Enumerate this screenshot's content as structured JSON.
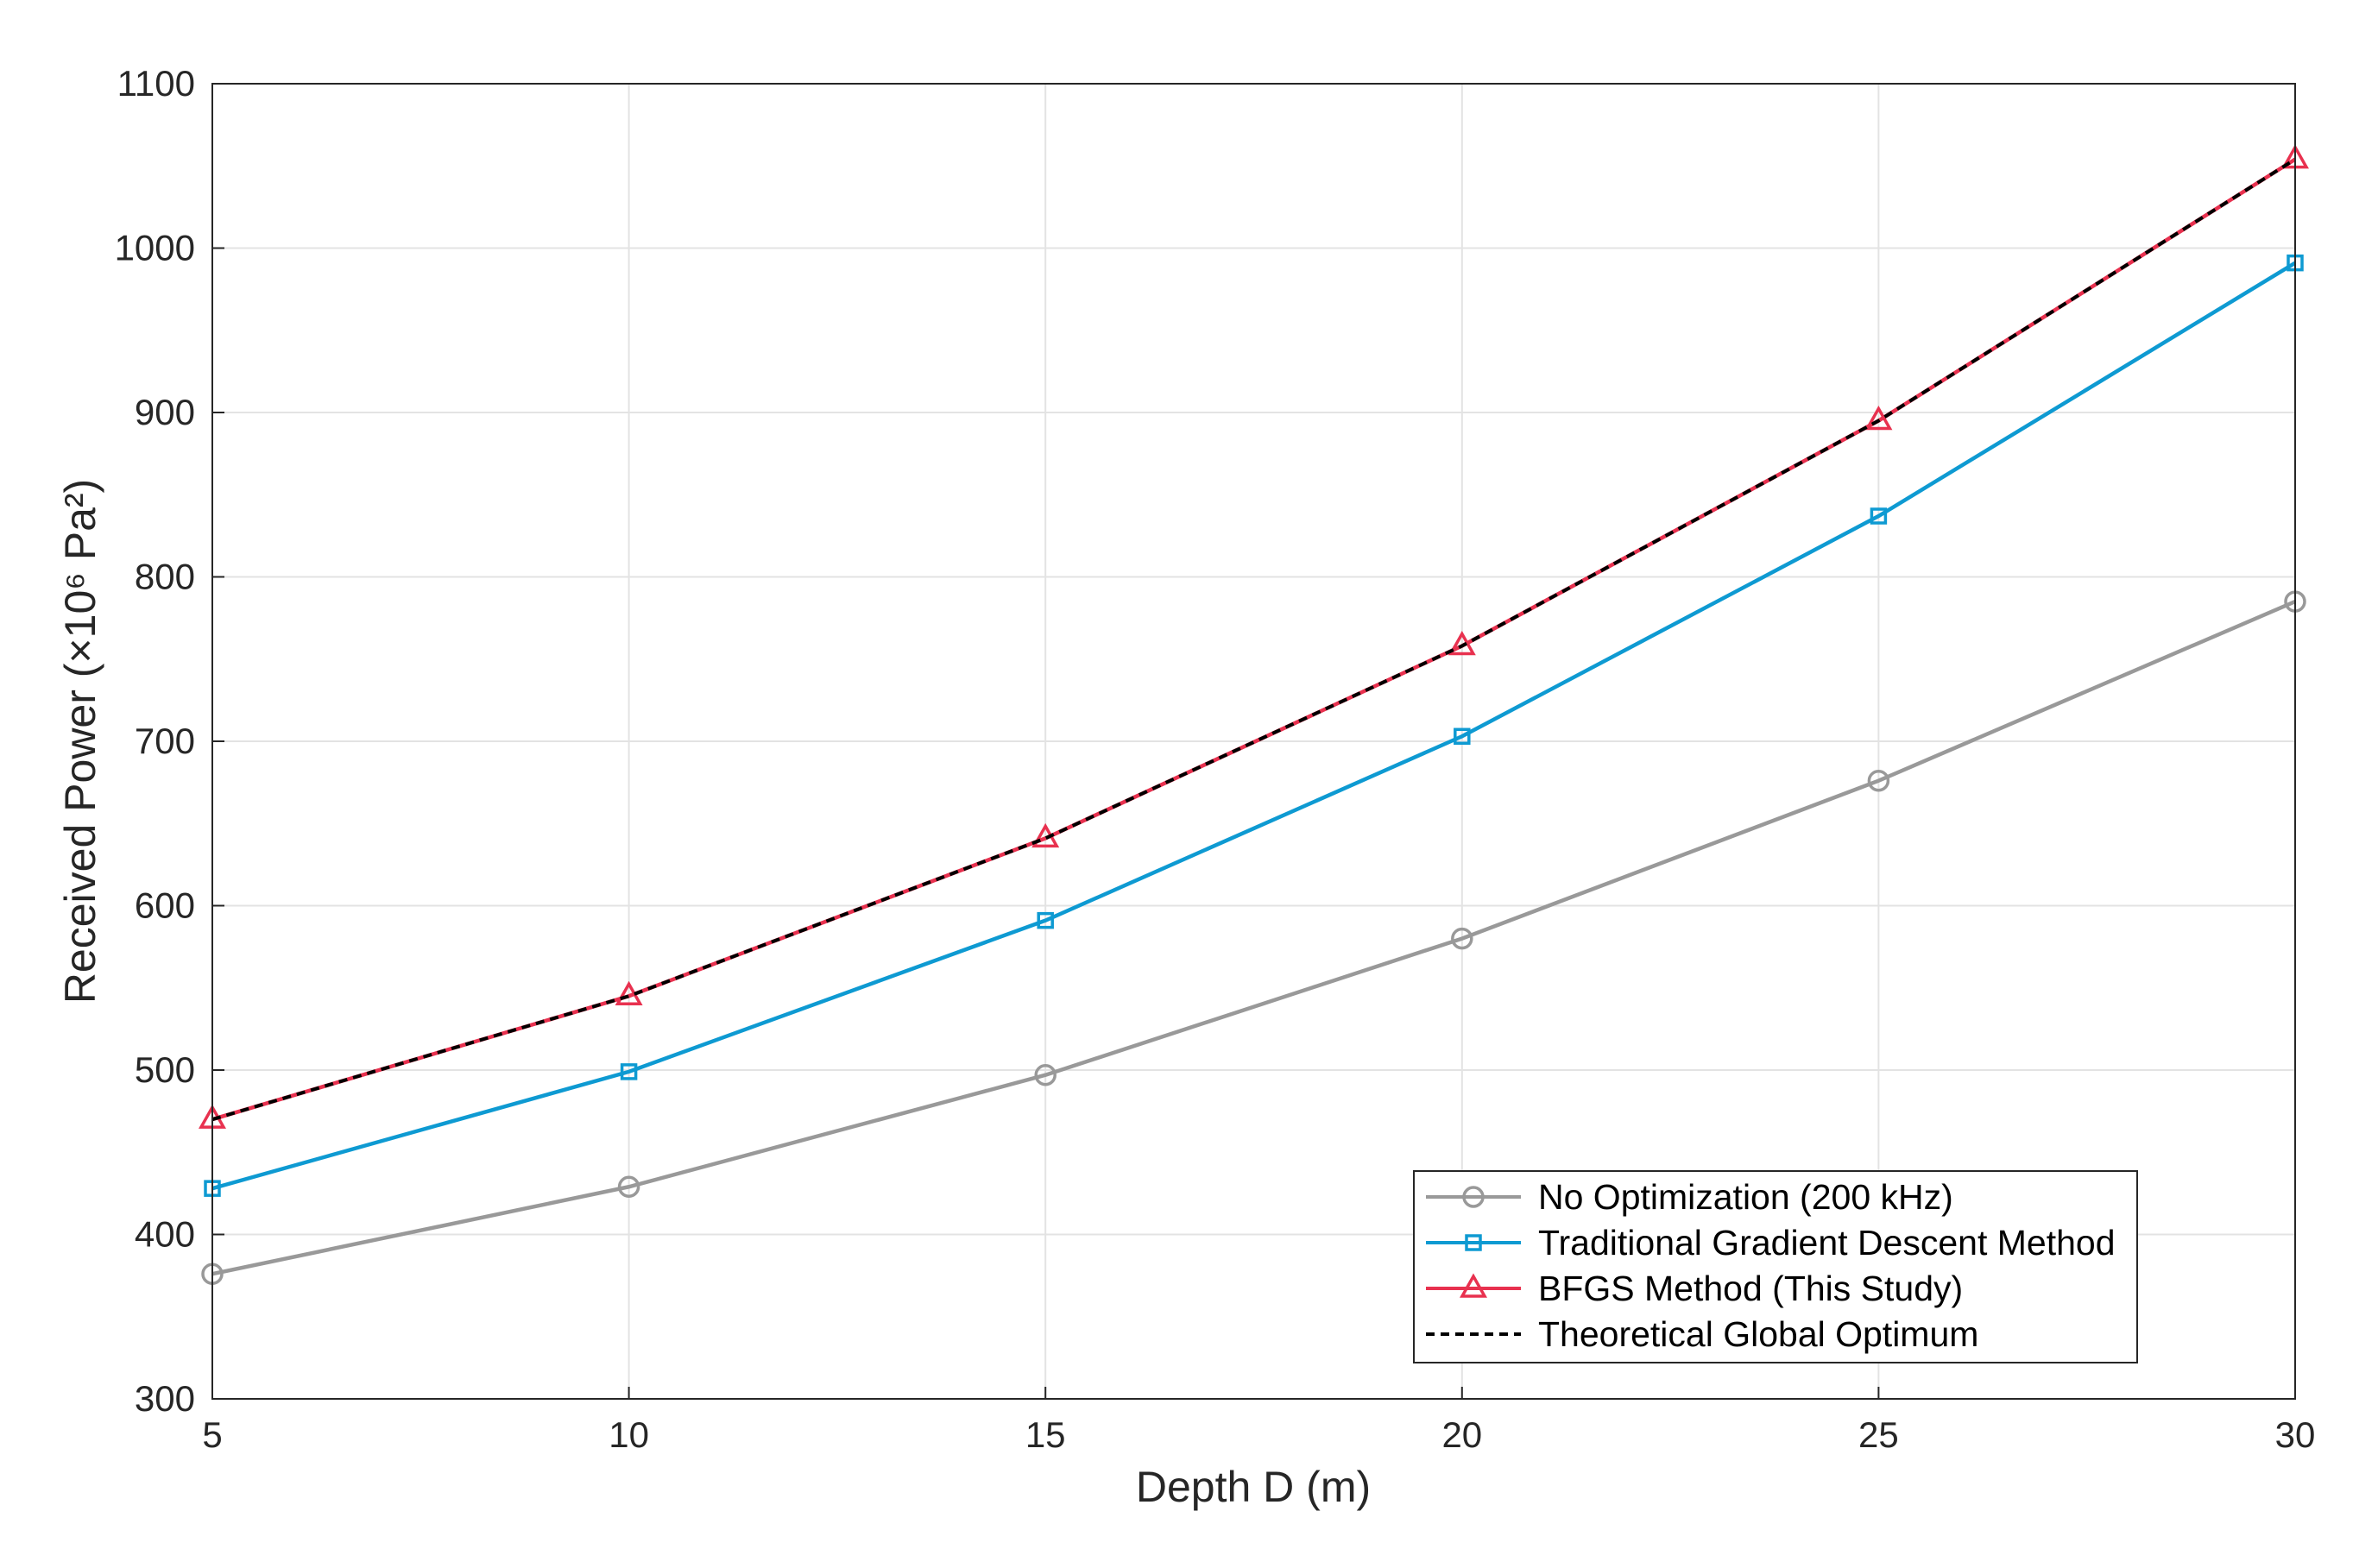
{
  "chart_data": {
    "type": "line",
    "title": "",
    "xlabel": "Depth D (m)",
    "ylabel": "Received Power (×10⁶ Pa²)",
    "x": [
      5,
      10,
      15,
      20,
      25,
      30
    ],
    "xlim": [
      5,
      30
    ],
    "ylim": [
      300,
      1100
    ],
    "xticks": [
      "5",
      "10",
      "15",
      "20",
      "25",
      "30"
    ],
    "yticks": [
      "300",
      "400",
      "500",
      "600",
      "700",
      "800",
      "900",
      "1000",
      "1100"
    ],
    "grid": true,
    "legend_position": "bottom-right",
    "series": [
      {
        "name": "No Optimization (200 kHz)",
        "values": [
          376,
          429,
          497,
          580,
          676,
          785
        ],
        "color": "#999999",
        "marker": "circle",
        "dash": "solid"
      },
      {
        "name": "Traditional Gradient Descent Method",
        "values": [
          428,
          499,
          591,
          703,
          837,
          991
        ],
        "color": "#0e9ad2",
        "marker": "square",
        "dash": "solid"
      },
      {
        "name": "BFGS Method (This Study)",
        "values": [
          470,
          545,
          641,
          758,
          895,
          1054
        ],
        "color": "#e8314f",
        "marker": "triangle",
        "dash": "solid"
      },
      {
        "name": "Theoretical Global Optimum",
        "values": [
          470,
          545,
          641,
          758,
          895,
          1054
        ],
        "color": "#000000",
        "marker": "none",
        "dash": "dashed"
      }
    ]
  }
}
